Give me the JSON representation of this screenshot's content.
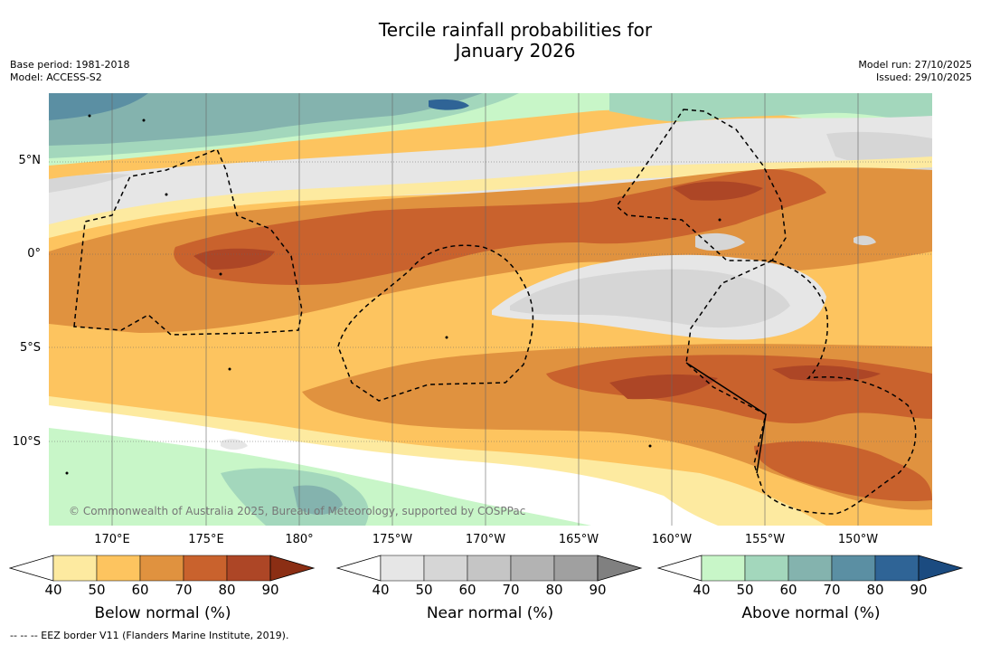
{
  "title": {
    "line1": "Tercile rainfall probabilities for",
    "line2": "January 2026"
  },
  "header": {
    "base_period": "Base period: 1981-2018",
    "model": "Model: ACCESS-S2",
    "model_run": "Model run: 27/10/2025",
    "issued": "Issued: 29/10/2025"
  },
  "map": {
    "copyright": "© Commonwealth of Australia 2025, Bureau of Meteorology, supported by COSPPac",
    "lat_labels": [
      "5°N",
      "0°",
      "5°S",
      "10°S"
    ],
    "lon_labels": [
      "170°E",
      "175°E",
      "180°",
      "175°W",
      "170°W",
      "165°W",
      "160°W",
      "155°W",
      "150°W"
    ]
  },
  "colorbars": [
    {
      "label": "Below normal (%)",
      "ticks": [
        "40",
        "50",
        "60",
        "70",
        "80",
        "90"
      ],
      "colors": [
        "#ffffff",
        "#fdeaa0",
        "#fdc45f",
        "#e0923f",
        "#c9622d",
        "#ad4626",
        "#8b2e14"
      ]
    },
    {
      "label": "Near normal (%)",
      "ticks": [
        "40",
        "50",
        "60",
        "70",
        "80",
        "90"
      ],
      "colors": [
        "#ffffff",
        "#e6e6e6",
        "#d6d6d6",
        "#c5c5c5",
        "#b3b3b3",
        "#a0a0a0",
        "#808080"
      ]
    },
    {
      "label": "Above normal (%)",
      "ticks": [
        "40",
        "50",
        "60",
        "70",
        "80",
        "90"
      ],
      "colors": [
        "#ffffff",
        "#c8f6c8",
        "#a3d7bc",
        "#84b3ae",
        "#5b8fa3",
        "#2f6496",
        "#1b4b80"
      ]
    }
  ],
  "footer": {
    "eez_note": "-- -- -- EEZ border V11 (Flanders Marine Institute, 2019)."
  }
}
